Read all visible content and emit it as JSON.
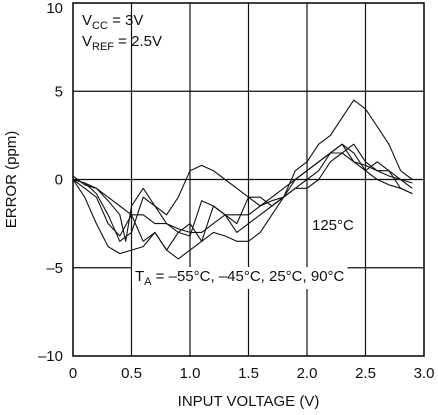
{
  "chart_data": {
    "type": "line",
    "title": "",
    "xlabel": "INPUT VOLTAGE (V)",
    "ylabel": "ERROR (ppm)",
    "xlim": [
      0,
      3
    ],
    "ylim": [
      -10,
      10
    ],
    "x_ticks": [
      0,
      0.5,
      1.0,
      1.5,
      2.0,
      2.5,
      3.0
    ],
    "x_tick_labels": [
      "0",
      "0.5",
      "1.0",
      "1.5",
      "2.0",
      "2.5",
      "3.0"
    ],
    "y_ticks": [
      -10,
      -5,
      0,
      5,
      10
    ],
    "y_tick_labels": [
      "–10",
      "–5",
      "0",
      "5",
      "10"
    ],
    "grid": true,
    "annotations": {
      "vcc": {
        "main": "V",
        "sub": "CC",
        "rest": " = 3V"
      },
      "vref": {
        "main": "V",
        "sub": "REF",
        "rest": " = 2.5V"
      },
      "t125": "125°C",
      "ta": {
        "main": "T",
        "sub": "A",
        "rest": " = –55°C, –45°C, 25°C, 90°C"
      }
    },
    "series": [
      {
        "x": [
          0,
          0.1,
          0.2,
          0.3,
          0.4,
          0.45,
          0.5,
          0.6,
          0.7,
          0.8,
          0.9,
          1.0,
          1.1,
          1.2,
          1.3,
          1.4,
          1.5,
          1.6,
          1.7,
          1.8,
          1.9,
          2.0,
          2.1,
          2.2,
          2.3,
          2.4,
          2.5,
          2.6,
          2.7,
          2.8,
          2.9
        ],
        "values": [
          0.2,
          -0.3,
          -0.5,
          -1.2,
          -2.0,
          -3.5,
          -1.5,
          -0.5,
          -1.5,
          -2.5,
          -3.0,
          -3.2,
          -1.2,
          -1.5,
          -2.0,
          -2.5,
          -1.0,
          -1.0,
          -1.5,
          -1.0,
          0.0,
          0.5,
          1.0,
          1.5,
          2.0,
          1.5,
          0.5,
          1.0,
          0.5,
          -0.5,
          -0.8
        ]
      },
      {
        "x": [
          0,
          0.1,
          0.2,
          0.3,
          0.4,
          0.5,
          0.6,
          0.7,
          0.8,
          0.9,
          1.0,
          1.1,
          1.2,
          1.3,
          1.4,
          1.5,
          1.6,
          1.7,
          1.8,
          1.9,
          2.0,
          2.1,
          2.2,
          2.3,
          2.4,
          2.5,
          2.6,
          2.7,
          2.8,
          2.9
        ],
        "values": [
          0.0,
          -0.5,
          -1.0,
          -2.5,
          -3.2,
          -2.0,
          -3.5,
          -3.0,
          -4.0,
          -3.0,
          -2.5,
          -3.5,
          -1.5,
          -2.0,
          -3.0,
          -2.5,
          -2.0,
          -1.5,
          -1.0,
          -0.5,
          0.0,
          0.5,
          1.5,
          2.0,
          1.0,
          0.5,
          0.0,
          -0.3,
          -0.5,
          -0.8
        ]
      },
      {
        "x": [
          0,
          0.1,
          0.2,
          0.3,
          0.4,
          0.5,
          0.6,
          0.7,
          0.8,
          0.9,
          1.0,
          1.1,
          1.2,
          1.3,
          1.4,
          1.5,
          1.6,
          1.7,
          1.8,
          1.9,
          2.0,
          2.1,
          2.2,
          2.3,
          2.4,
          2.5,
          2.6,
          2.7,
          2.8,
          2.9
        ],
        "values": [
          0.0,
          -1.0,
          -2.5,
          -3.8,
          -4.2,
          -4.0,
          -3.8,
          -3.0,
          -4.0,
          -4.5,
          -4.0,
          -3.5,
          -3.0,
          -3.2,
          -3.5,
          -3.5,
          -3.0,
          -2.0,
          -1.0,
          0.5,
          1.0,
          2.0,
          2.5,
          3.5,
          4.5,
          4.0,
          3.0,
          2.0,
          0.5,
          0.0
        ]
      },
      {
        "x": [
          0,
          0.1,
          0.2,
          0.3,
          0.4,
          0.5,
          0.6,
          0.7,
          0.8,
          0.9,
          1.0,
          1.1,
          1.2,
          1.3,
          1.4,
          1.5,
          1.6,
          1.7,
          1.8,
          1.9,
          2.0,
          2.1,
          2.2,
          2.3,
          2.4,
          2.5,
          2.6,
          2.7,
          2.8,
          2.9
        ],
        "values": [
          0.0,
          -0.2,
          -0.8,
          -2.0,
          -3.5,
          -3.0,
          -1.0,
          -1.5,
          -2.0,
          -1.0,
          0.5,
          0.8,
          0.5,
          0.0,
          -0.5,
          -1.0,
          -1.5,
          -1.2,
          -1.0,
          -0.5,
          -0.5,
          0.0,
          1.0,
          1.5,
          2.0,
          1.0,
          0.5,
          0.5,
          0.0,
          -0.5
        ]
      },
      {
        "x": [
          0,
          0.1,
          0.2,
          0.3,
          0.4,
          0.5,
          0.6,
          0.7,
          0.8,
          0.9,
          1.0,
          1.1,
          1.2,
          1.3,
          1.4,
          1.5,
          1.6,
          1.7,
          1.8,
          1.9,
          2.0,
          2.1,
          2.2,
          2.3,
          2.4,
          2.5,
          2.6,
          2.7,
          2.8,
          2.9
        ],
        "values": [
          0.0,
          -0.2,
          -0.5,
          -1.0,
          -1.5,
          -2.0,
          -2.0,
          -2.5,
          -2.5,
          -2.8,
          -3.0,
          -3.0,
          -2.5,
          -2.0,
          -2.0,
          -2.0,
          -1.5,
          -1.0,
          -0.5,
          0.0,
          0.5,
          1.0,
          1.5,
          1.5,
          1.0,
          0.8,
          0.5,
          0.2,
          0.0,
          -0.2
        ]
      }
    ]
  }
}
